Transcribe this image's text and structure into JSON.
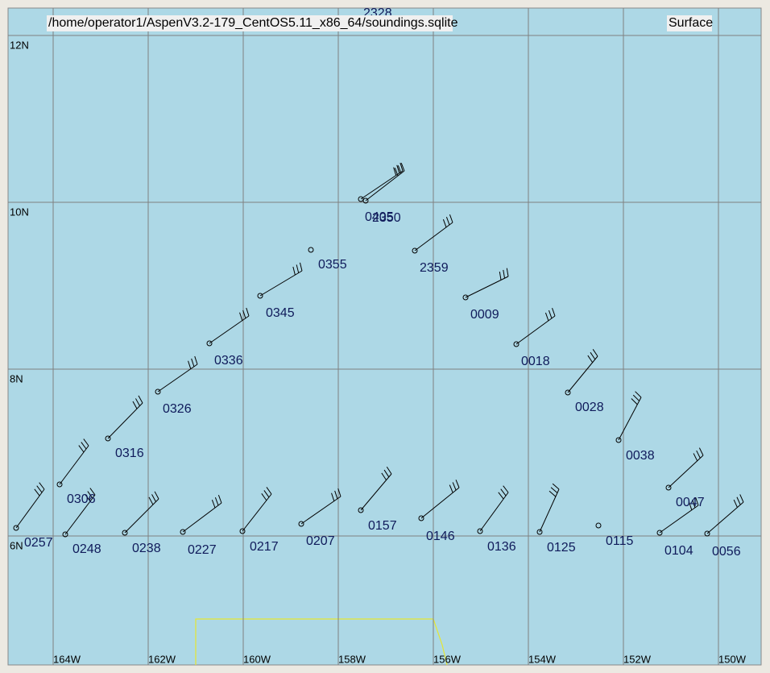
{
  "header": {
    "file": "/home/operator1/AspenV3.2-179_CentOS5.11_x86_64/soundings.sqlite",
    "level": "Surface",
    "top_label": "2328"
  },
  "lat_labels": [
    "12N",
    "10N",
    "8N",
    "6N"
  ],
  "lon_labels": [
    "164W",
    "162W",
    "160W",
    "158W",
    "156W",
    "154W",
    "152W",
    "150W"
  ],
  "stations": [
    "0257",
    "0248",
    "0238",
    "0227",
    "0217",
    "0207",
    "0157",
    "0146",
    "0136",
    "0125",
    "0115",
    "0104",
    "0056",
    "0047",
    "0038",
    "0028",
    "0018",
    "0009",
    "2359",
    "0355",
    "0345",
    "0336",
    "0326",
    "0316",
    "0306",
    "0405",
    "2350"
  ]
}
